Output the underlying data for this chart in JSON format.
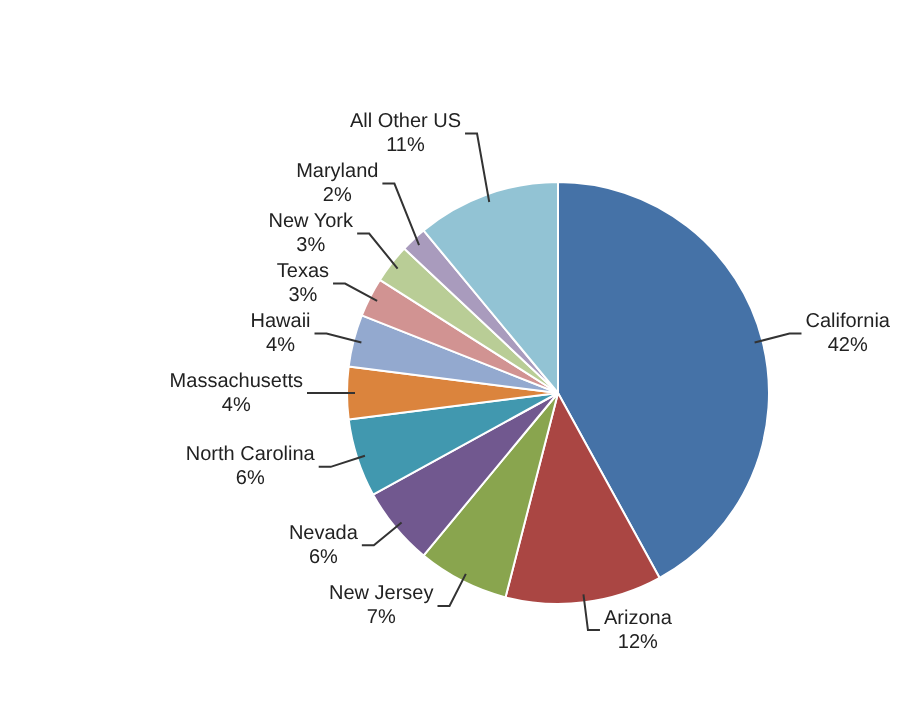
{
  "chart_data": {
    "type": "pie",
    "categories": [
      "California",
      "Arizona",
      "New Jersey",
      "Nevada",
      "North Carolina",
      "Massachusetts",
      "Hawaii",
      "Texas",
      "New York",
      "Maryland",
      "All Other US"
    ],
    "values": [
      42,
      12,
      7,
      6,
      6,
      4,
      4,
      3,
      3,
      2,
      11
    ],
    "value_labels": [
      "42%",
      "12%",
      "7%",
      "6%",
      "6%",
      "4%",
      "4%",
      "3%",
      "3%",
      "2%",
      "11%"
    ],
    "colors": [
      "#4572a7",
      "#aa4643",
      "#89a54e",
      "#71588f",
      "#4198af",
      "#db843d",
      "#93a9cf",
      "#d19392",
      "#b9cd96",
      "#a99bbd",
      "#92c3d4"
    ],
    "legend": false
  }
}
